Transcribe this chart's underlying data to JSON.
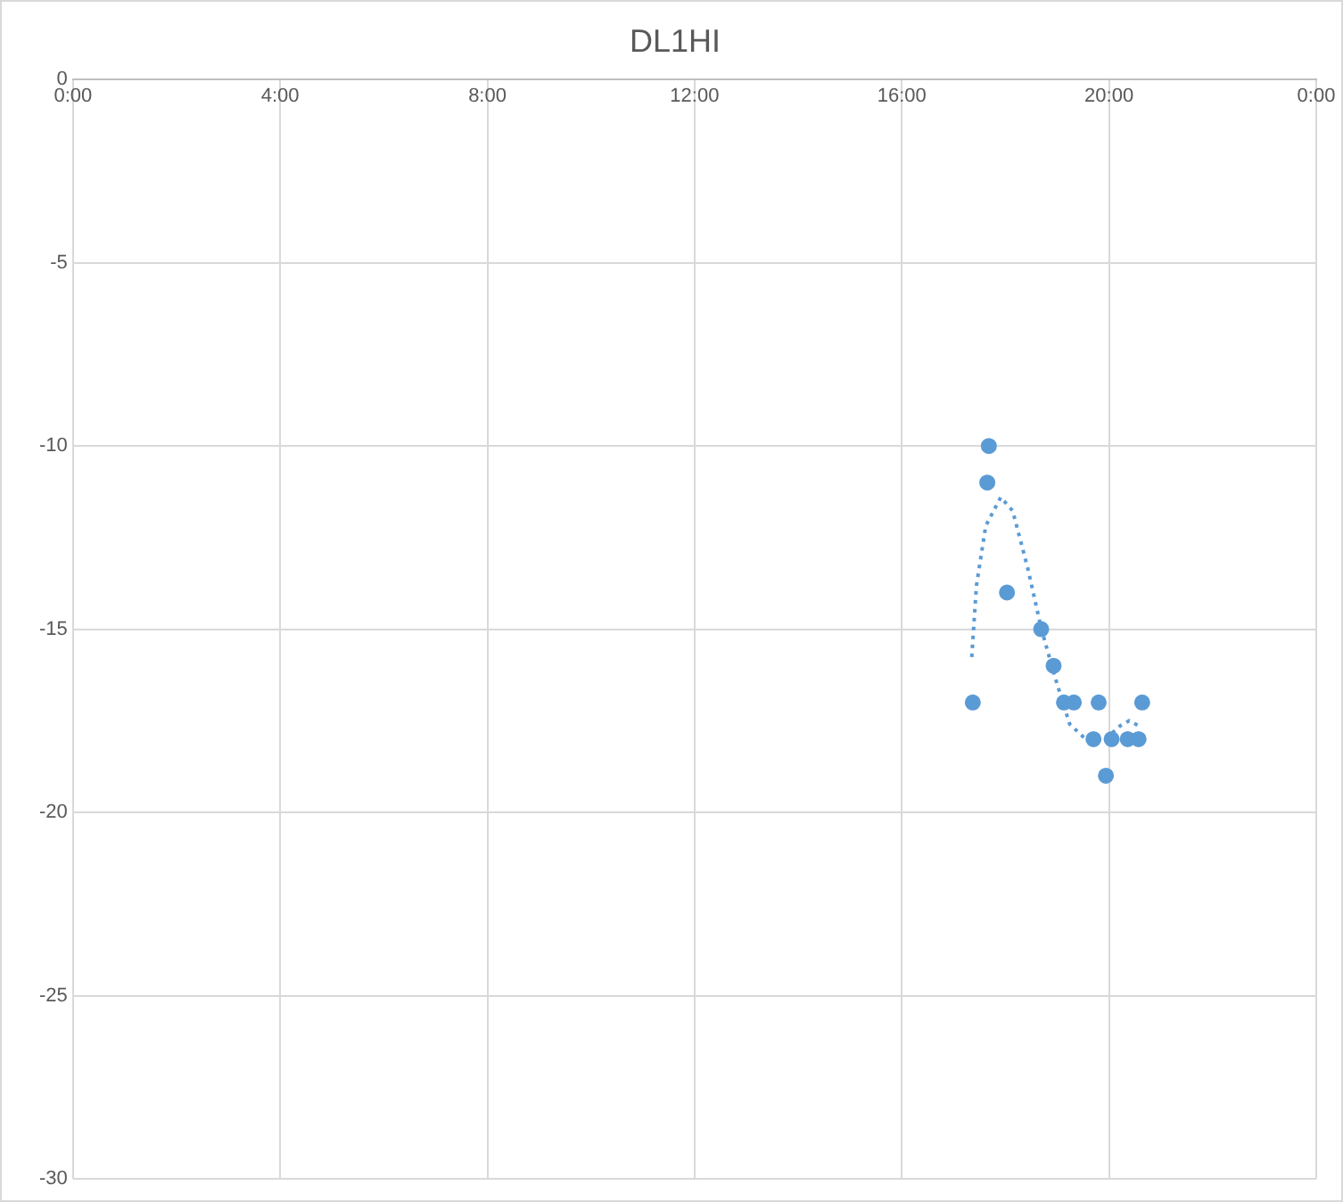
{
  "chart_data": {
    "type": "scatter",
    "title": "DL1HI",
    "xlim": [
      0,
      24
    ],
    "xticks": [
      {
        "value": 0,
        "label": "0:00"
      },
      {
        "value": 4,
        "label": "4:00"
      },
      {
        "value": 8,
        "label": "8:00"
      },
      {
        "value": 12,
        "label": "12:00"
      },
      {
        "value": 16,
        "label": "16:00"
      },
      {
        "value": 20,
        "label": "20:00"
      },
      {
        "value": 24,
        "label": "0:00"
      }
    ],
    "ylim": [
      -30,
      0
    ],
    "yticks": [
      0,
      -5,
      -10,
      -15,
      -20,
      -25,
      -30
    ],
    "grid": true,
    "legend": false,
    "marker": "circle",
    "series": [
      {
        "color": "#5b9bd5",
        "x": [
          17.37,
          17.68,
          17.65,
          18.03,
          18.69,
          18.93,
          19.13,
          19.32,
          19.8,
          20.64,
          19.7,
          20.05,
          20.36,
          20.57,
          19.94
        ],
        "values": [
          -17,
          -10,
          -11,
          -14,
          -15,
          -16,
          -17,
          -17,
          -17,
          -17,
          -18,
          -18,
          -18,
          -18,
          -19
        ]
      },
      {
        "type": "line",
        "color": "#5b9bd5",
        "line_style": "dotted",
        "marker": "none",
        "x": [
          17.35,
          17.44,
          17.62,
          17.91,
          18.14,
          18.43,
          18.69,
          18.95,
          19.24,
          19.58,
          19.93,
          20.22,
          20.39,
          20.63
        ],
        "values": [
          -15.76,
          -13.82,
          -12.18,
          -11.4,
          -11.77,
          -13.33,
          -14.97,
          -16.28,
          -17.59,
          -18.04,
          -18,
          -17.63,
          -17.5,
          -17.68
        ]
      }
    ]
  }
}
